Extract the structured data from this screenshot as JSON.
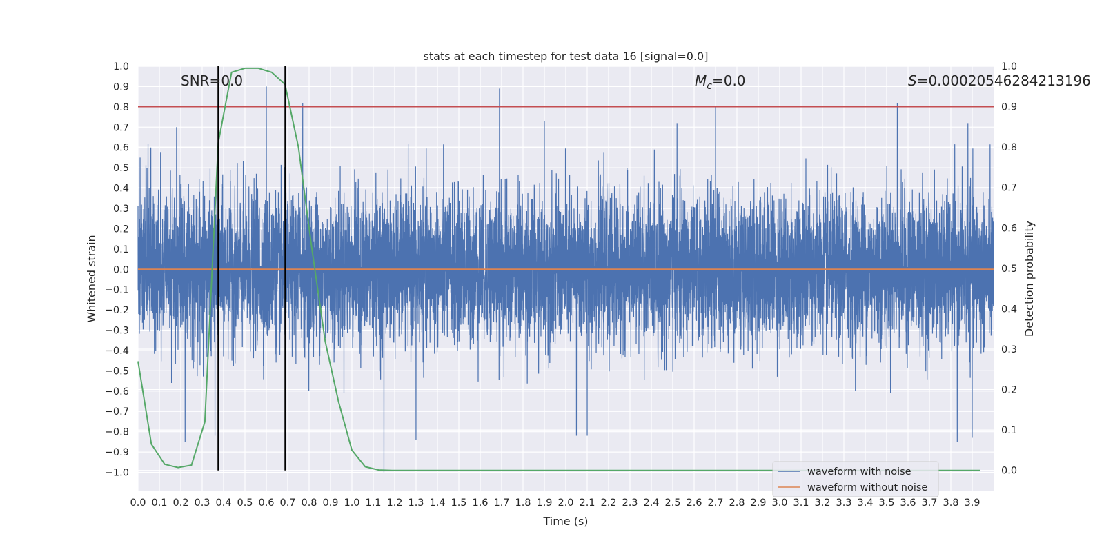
{
  "chart_data": {
    "type": "line",
    "title": "stats at each timestep for test data 16 [signal=0.0]",
    "xlabel": "Time (s)",
    "ylabel": "Whitened strain",
    "y2label": "Detection probability",
    "xlim": [
      0.0,
      4.0
    ],
    "ylim": [
      -1.09,
      1.0
    ],
    "y2lim": [
      -0.05,
      1.0
    ],
    "xticks": [
      "0.0",
      "0.1",
      "0.2",
      "0.3",
      "0.4",
      "0.5",
      "0.6",
      "0.7",
      "0.8",
      "0.9",
      "1.0",
      "1.1",
      "1.2",
      "1.3",
      "1.4",
      "1.5",
      "1.6",
      "1.7",
      "1.8",
      "1.9",
      "2.0",
      "2.1",
      "2.2",
      "2.3",
      "2.4",
      "2.5",
      "2.6",
      "2.7",
      "2.8",
      "2.9",
      "3.0",
      "3.1",
      "3.2",
      "3.3",
      "3.4",
      "3.5",
      "3.6",
      "3.7",
      "3.8",
      "3.9"
    ],
    "yticks": [
      "1.0",
      "0.9",
      "0.8",
      "0.7",
      "0.6",
      "0.5",
      "0.4",
      "0.3",
      "0.2",
      "0.1",
      "0.0",
      "−0.1",
      "−0.2",
      "−0.3",
      "−0.4",
      "−0.5",
      "−0.6",
      "−0.7",
      "−0.8",
      "−0.9",
      "−1.0"
    ],
    "y2ticks": [
      "1.0",
      "0.9",
      "0.8",
      "0.7",
      "0.6",
      "0.5",
      "0.4",
      "0.3",
      "0.2",
      "0.1",
      "0.0"
    ],
    "grid": true,
    "legend_position": "bottom-right",
    "annotations": {
      "snr_prefix": "SNR=",
      "snr_value": "0.0",
      "mc_symbol": "M",
      "mc_subscript": "c",
      "mc_value": "=0.0",
      "s_symbol": "S",
      "s_value": "=0.00020546284213196"
    },
    "vertical_markers_x": [
      0.375,
      0.688
    ],
    "threshold_y2": 0.9,
    "series": [
      {
        "name": "waveform with noise",
        "color": "#4c72b0",
        "kind": "noise",
        "sample_rate_hz": 2048,
        "approx_std": 0.18,
        "peaks": [
          {
            "x": 0.01,
            "y": 0.55
          },
          {
            "x": 0.06,
            "y": 0.6
          },
          {
            "x": 0.18,
            "y": 0.7
          },
          {
            "x": 0.22,
            "y": -0.85
          },
          {
            "x": 0.36,
            "y": 0.75
          },
          {
            "x": 0.36,
            "y": -0.82
          },
          {
            "x": 0.6,
            "y": 0.9
          },
          {
            "x": 0.77,
            "y": 0.82
          },
          {
            "x": 1.15,
            "y": -1.0
          },
          {
            "x": 1.3,
            "y": -0.84
          },
          {
            "x": 1.69,
            "y": 0.89
          },
          {
            "x": 1.9,
            "y": 0.73
          },
          {
            "x": 2.05,
            "y": -0.82
          },
          {
            "x": 2.1,
            "y": -0.82
          },
          {
            "x": 2.52,
            "y": 0.72
          },
          {
            "x": 2.7,
            "y": 0.8
          },
          {
            "x": 3.55,
            "y": 0.82
          },
          {
            "x": 3.83,
            "y": -0.85
          },
          {
            "x": 3.9,
            "y": -0.83
          },
          {
            "x": 3.88,
            "y": 0.72
          }
        ]
      },
      {
        "name": "waveform without noise",
        "color": "#dd8452",
        "x": [
          0.0,
          4.0
        ],
        "y": [
          0.0,
          0.0
        ]
      },
      {
        "name": "",
        "color": "#55a868",
        "axis": "right",
        "x": [
          0.0,
          0.0625,
          0.125,
          0.1875,
          0.25,
          0.3125,
          0.375,
          0.4375,
          0.5,
          0.5625,
          0.625,
          0.6875,
          0.75,
          0.8125,
          0.875,
          0.9375,
          1.0,
          1.0625,
          1.125,
          1.1875,
          1.25,
          3.9375
        ],
        "y": [
          0.27,
          0.065,
          0.015,
          0.007,
          0.013,
          0.12,
          0.81,
          0.985,
          0.995,
          0.995,
          0.985,
          0.955,
          0.8,
          0.55,
          0.32,
          0.17,
          0.05,
          0.009,
          0.001,
          0.0,
          0.0,
          0.0
        ]
      }
    ],
    "colors": {
      "background": "#eaeaf2",
      "grid": "#ffffff",
      "threshold": "#c44e52",
      "marker": "#000000"
    }
  }
}
